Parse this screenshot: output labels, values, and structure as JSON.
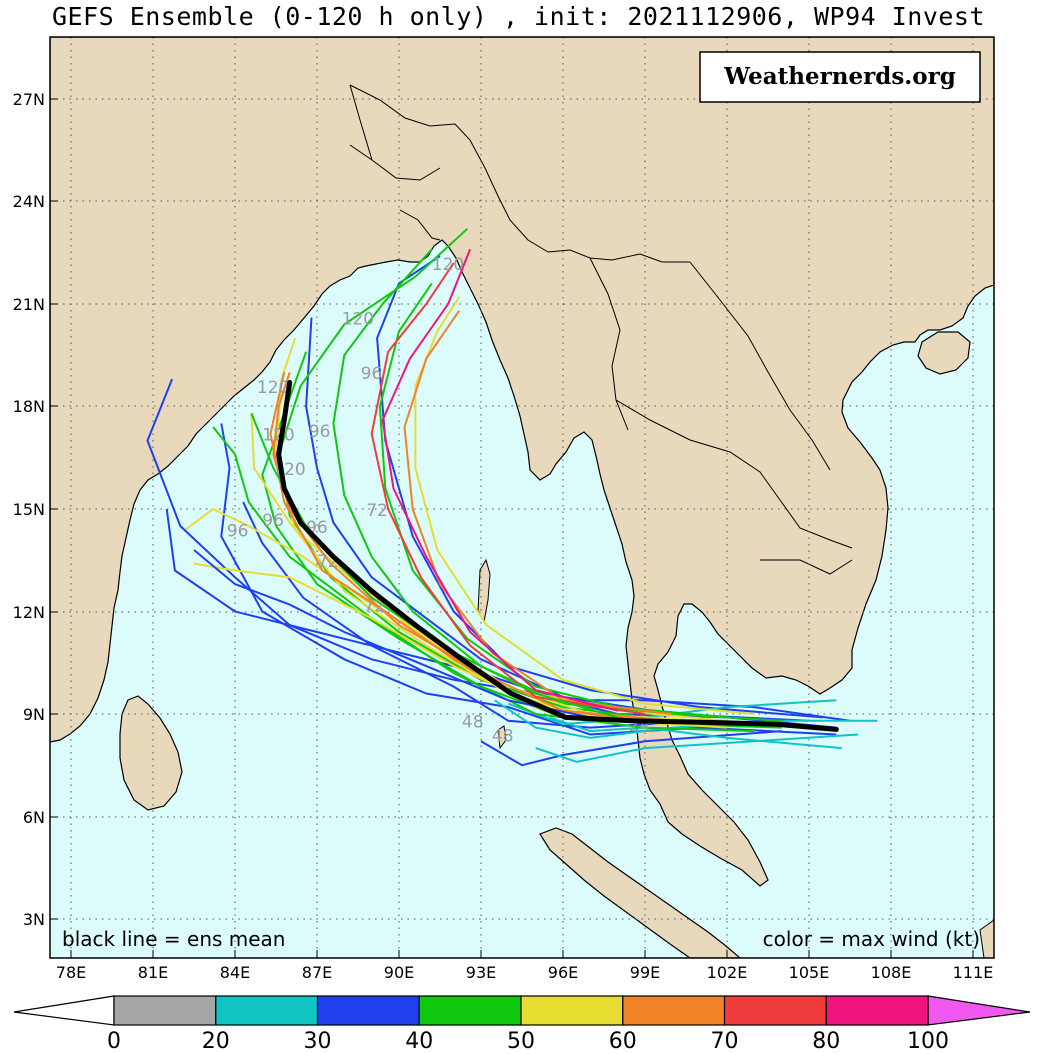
{
  "title": "GEFS Ensemble (0-120 h only) , init: 2021112906, WP94 Invest",
  "credit": "Weathernerds.org",
  "legend_left": "black line = ens mean",
  "legend_right": "color = max wind (kt)",
  "lat_labels": [
    "27N",
    "24N",
    "21N",
    "18N",
    "15N",
    "12N",
    "9N",
    "6N",
    "3N"
  ],
  "lon_labels": [
    "78E",
    "81E",
    "84E",
    "87E",
    "90E",
    "93E",
    "96E",
    "99E",
    "102E",
    "105E",
    "108E",
    "111E"
  ],
  "hour_labels": [
    "120",
    "120",
    "120",
    "96",
    "96",
    "120",
    "96",
    "96",
    "96",
    "72",
    "72",
    "72",
    "48",
    "48",
    "24",
    "120"
  ],
  "colorbar": {
    "ticks": [
      "0",
      "20",
      "30",
      "40",
      "50",
      "60",
      "70",
      "80",
      "100"
    ],
    "colors": [
      "#a6a6a6",
      "#10c4c4",
      "#2040f0",
      "#10c810",
      "#e6dc32",
      "#f08228",
      "#f03c3c",
      "#f0147c"
    ],
    "under_color": "#ffffff",
    "over_color": "#f058f0"
  },
  "colors": {
    "ocean": "#dcfcfc",
    "land": "#e8d8bc",
    "mean_track": "#000000"
  },
  "mean_track": [
    [
      86.0,
      18.7
    ],
    [
      85.8,
      17.6
    ],
    [
      85.6,
      16.6
    ],
    [
      85.8,
      15.6
    ],
    [
      86.4,
      14.6
    ],
    [
      87.6,
      13.6
    ],
    [
      89.0,
      12.6
    ],
    [
      90.6,
      11.6
    ],
    [
      92.3,
      10.6
    ],
    [
      94.1,
      9.6
    ],
    [
      96.1,
      8.9
    ],
    [
      98.5,
      8.8
    ],
    [
      101.5,
      8.75
    ],
    [
      103.8,
      8.7
    ],
    [
      106.0,
      8.55
    ]
  ]
}
